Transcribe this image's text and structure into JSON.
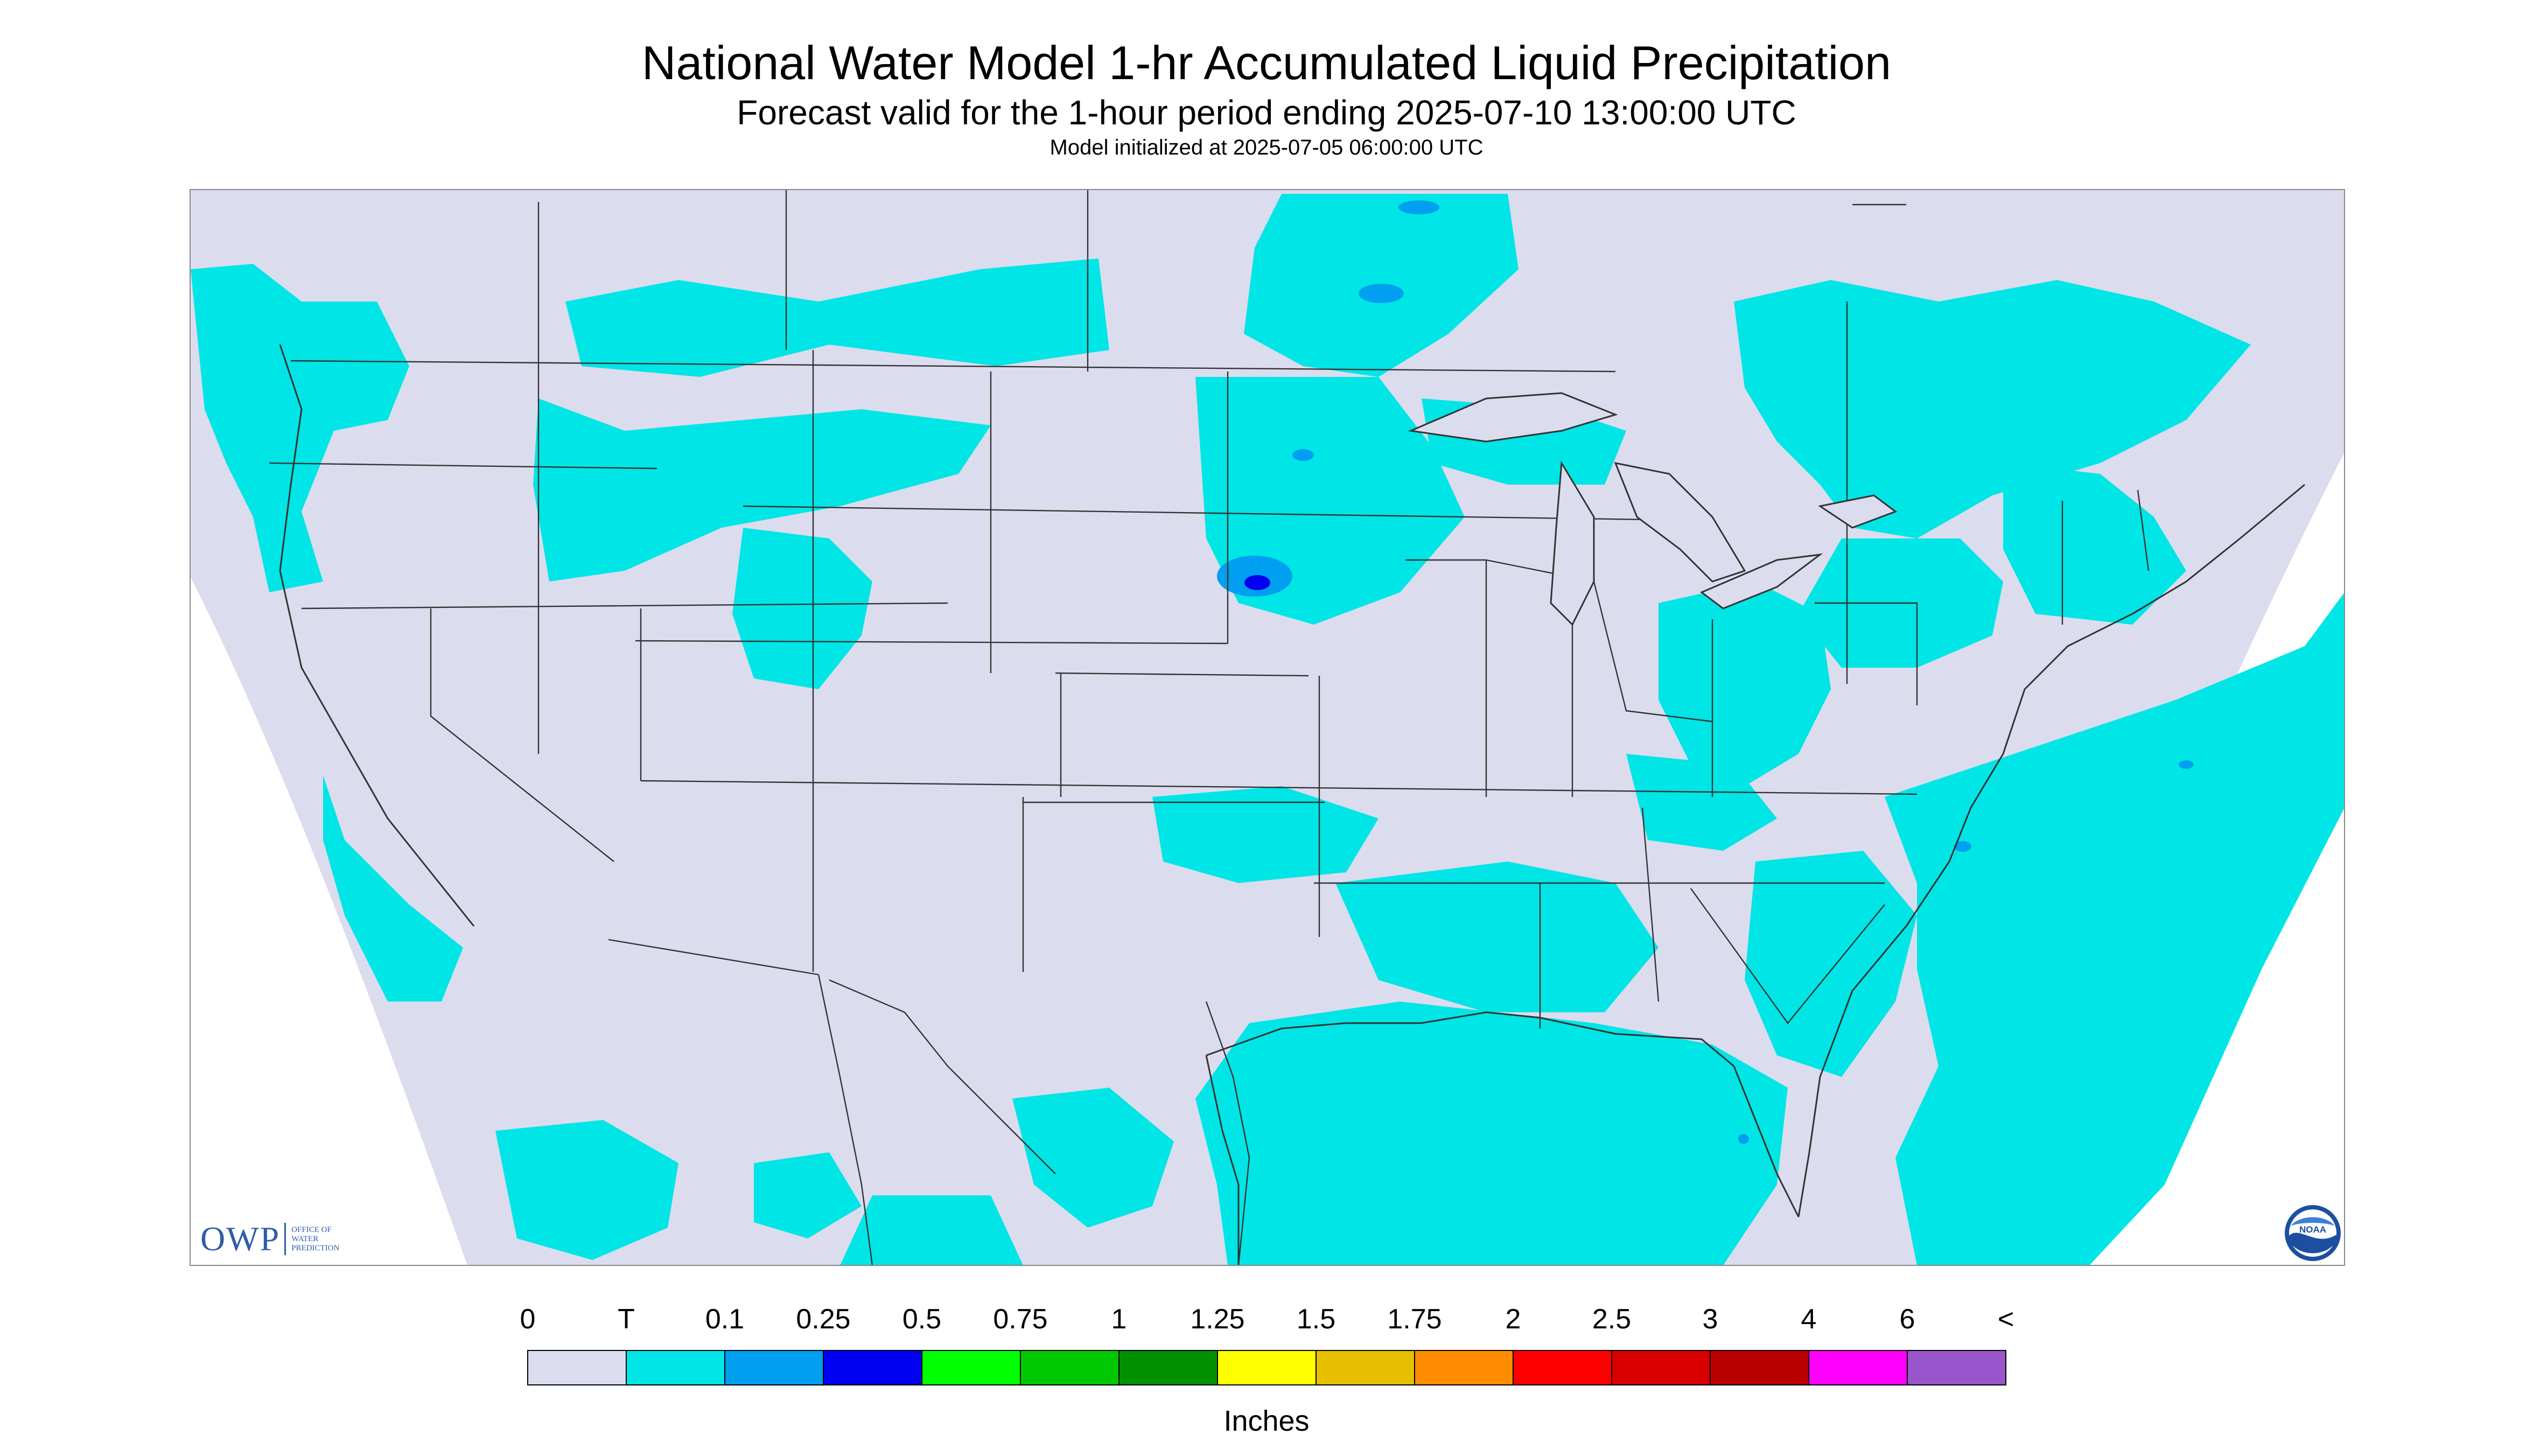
{
  "header": {
    "title": "National Water Model 1-hr Accumulated Liquid Precipitation",
    "subtitle": "Forecast valid for the 1-hour period ending 2025-07-10 13:00:00 UTC",
    "init_line": "Model initialized at 2025-07-05 06:00:00 UTC"
  },
  "legend": {
    "labels": [
      "0",
      "T",
      "0.1",
      "0.25",
      "0.5",
      "0.75",
      "1",
      "1.25",
      "1.5",
      "1.75",
      "2",
      "2.5",
      "3",
      "4",
      "6",
      "<"
    ],
    "colors": [
      "#dcdcef",
      "#00e5e5",
      "#009ff0",
      "#0000f0",
      "#00ff00",
      "#00c800",
      "#009000",
      "#ffff00",
      "#e6c000",
      "#ff8c00",
      "#ff0000",
      "#d80000",
      "#b80000",
      "#ff00ff",
      "#9955cc"
    ],
    "units": "Inches"
  },
  "map": {
    "no_data_color": "#dcdcef",
    "light_precip_color": "#00e5e5",
    "moderate_precip_color": "#009ff0",
    "heavy_precip_color": "#0000f0",
    "boundary_color": "#333333"
  },
  "branding": {
    "owp_mark": "OWP",
    "owp_text": [
      "OFFICE OF",
      "WATER",
      "PREDICTION"
    ],
    "noaa_text": "NOAA"
  }
}
